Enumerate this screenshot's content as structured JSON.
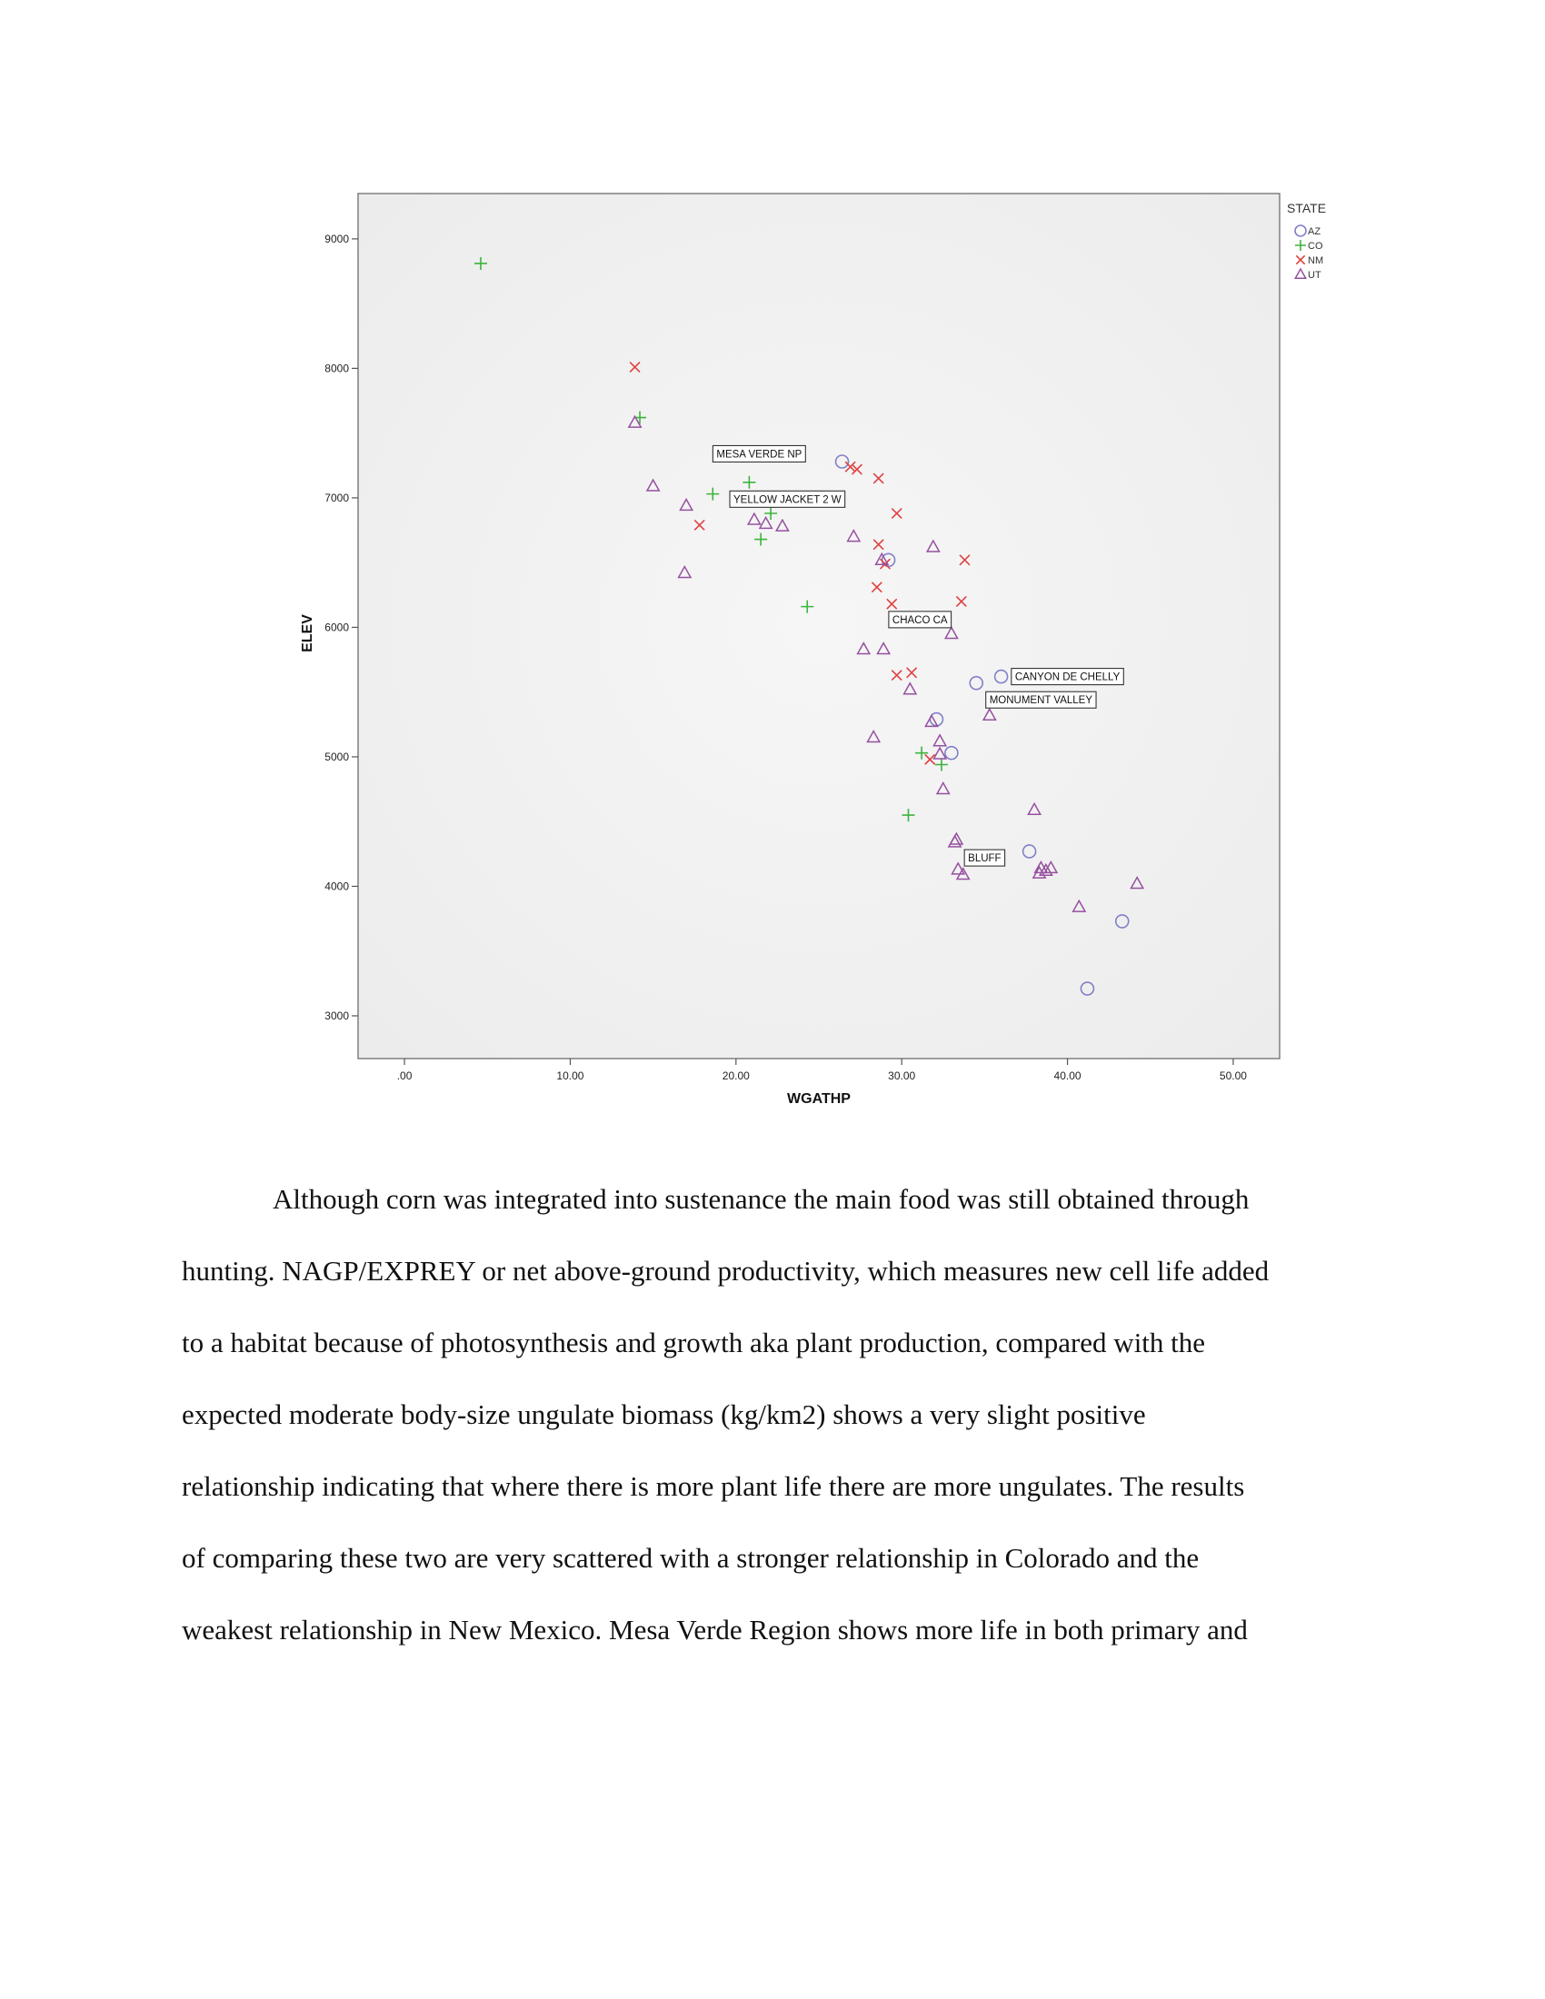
{
  "chart_data": {
    "type": "scatter",
    "xlabel": "WGATHP",
    "ylabel": "ELEV",
    "xlim": [
      -2.8,
      52.8
    ],
    "ylim": [
      2670,
      9350
    ],
    "x_ticks": [
      0,
      10,
      20,
      30,
      40,
      50
    ],
    "x_tick_labels": [
      ".00",
      "10.00",
      "20.00",
      "30.00",
      "40.00",
      "50.00"
    ],
    "y_ticks": [
      3000,
      4000,
      5000,
      6000,
      7000,
      8000,
      9000
    ],
    "y_tick_labels": [
      "3000",
      "4000",
      "5000",
      "6000",
      "7000",
      "8000",
      "9000"
    ],
    "legend": {
      "title": "STATE",
      "position": "right-top",
      "entries": [
        {
          "label": "AZ",
          "marker": "circle",
          "color": "#8080c8"
        },
        {
          "label": "CO",
          "marker": "plus",
          "color": "#3cb43c"
        },
        {
          "label": "NM",
          "marker": "x",
          "color": "#e04040"
        },
        {
          "label": "UT",
          "marker": "triangle",
          "color": "#9650a0"
        }
      ]
    },
    "series": [
      {
        "name": "AZ",
        "marker": "circle",
        "color": "#8080c8",
        "points": [
          [
            26.4,
            7280
          ],
          [
            29.2,
            6520
          ],
          [
            34.5,
            5570
          ],
          [
            36.0,
            5620
          ],
          [
            32.1,
            5290
          ],
          [
            33.0,
            5030
          ],
          [
            37.7,
            4270
          ],
          [
            43.3,
            3730
          ],
          [
            41.2,
            3210
          ]
        ]
      },
      {
        "name": "CO",
        "marker": "plus",
        "color": "#3cb43c",
        "points": [
          [
            4.6,
            8810
          ],
          [
            14.2,
            7620
          ],
          [
            18.6,
            7030
          ],
          [
            20.8,
            7120
          ],
          [
            22.1,
            6880
          ],
          [
            21.5,
            6680
          ],
          [
            24.3,
            6160
          ],
          [
            31.2,
            5030
          ],
          [
            32.4,
            4940
          ],
          [
            30.4,
            4550
          ]
        ]
      },
      {
        "name": "NM",
        "marker": "x",
        "color": "#e04040",
        "points": [
          [
            13.9,
            8010
          ],
          [
            17.8,
            6790
          ],
          [
            26.9,
            7240
          ],
          [
            27.3,
            7220
          ],
          [
            28.6,
            7150
          ],
          [
            29.7,
            6880
          ],
          [
            28.6,
            6640
          ],
          [
            29.0,
            6490
          ],
          [
            28.5,
            6310
          ],
          [
            33.8,
            6520
          ],
          [
            33.6,
            6200
          ],
          [
            29.4,
            6180
          ],
          [
            29.7,
            5630
          ],
          [
            30.6,
            5650
          ],
          [
            31.7,
            4980
          ]
        ]
      },
      {
        "name": "UT",
        "marker": "triangle",
        "color": "#9650a0",
        "points": [
          [
            13.9,
            7580
          ],
          [
            15.0,
            7090
          ],
          [
            17.0,
            6940
          ],
          [
            16.9,
            6420
          ],
          [
            21.1,
            6830
          ],
          [
            21.8,
            6800
          ],
          [
            22.8,
            6780
          ],
          [
            27.1,
            6700
          ],
          [
            28.8,
            6520
          ],
          [
            31.9,
            6620
          ],
          [
            33.0,
            5950
          ],
          [
            27.7,
            5830
          ],
          [
            28.9,
            5830
          ],
          [
            30.5,
            5520
          ],
          [
            35.3,
            5320
          ],
          [
            28.3,
            5150
          ],
          [
            31.8,
            5270
          ],
          [
            32.3,
            5120
          ],
          [
            32.3,
            5020
          ],
          [
            32.5,
            4750
          ],
          [
            33.3,
            4360
          ],
          [
            33.2,
            4340
          ],
          [
            33.4,
            4130
          ],
          [
            33.7,
            4090
          ],
          [
            38.0,
            4590
          ],
          [
            38.4,
            4140
          ],
          [
            38.3,
            4100
          ],
          [
            38.7,
            4120
          ],
          [
            39.0,
            4140
          ],
          [
            44.2,
            4020
          ],
          [
            40.7,
            3840
          ]
        ]
      }
    ],
    "annotations": [
      {
        "text": "MESA VERDE NP",
        "x": 21.4,
        "y": 7340
      },
      {
        "text": "YELLOW JACKET 2 W",
        "x": 23.1,
        "y": 6990
      },
      {
        "text": "CHACO CA",
        "x": 31.1,
        "y": 6060
      },
      {
        "text": "CANYON DE CHELLY",
        "x": 40.0,
        "y": 5620
      },
      {
        "text": "MONUMENT VALLEY",
        "x": 38.4,
        "y": 5440
      },
      {
        "text": "BLUFF",
        "x": 35.0,
        "y": 4220
      }
    ]
  },
  "body": {
    "lines": [
      "Although corn was integrated into sustenance the main food was still obtained through",
      "hunting. NAGP/EXPREY or net above-ground productivity, which measures new cell life added",
      "to a habitat because of photosynthesis and growth aka plant production, compared with the",
      "expected moderate body-size ungulate biomass (kg/km2) shows a very slight positive",
      "relationship indicating that where there is more plant life there are more ungulates.  The results",
      "of comparing these two are very scattered with a stronger relationship in Colorado and the",
      "weakest relationship in New Mexico. Mesa Verde Region shows more life in both primary and"
    ]
  }
}
